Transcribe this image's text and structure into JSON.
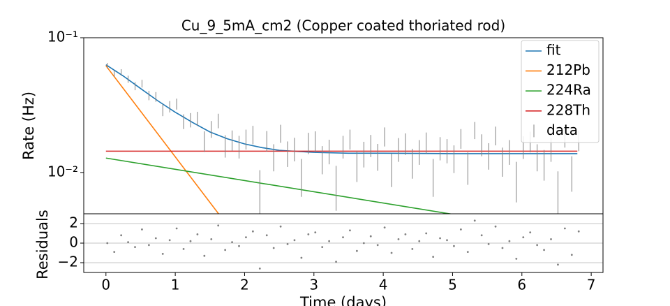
{
  "chart_data": [
    {
      "type": "line",
      "title": "Cu_9_5mA_cm2 (Copper coated thoriated rod)",
      "ylabel": "Rate (Hz)",
      "yscale": "log",
      "xlim": [
        -0.32,
        7.17
      ],
      "ylim": [
        0.00494,
        0.1
      ],
      "yticks": [
        {
          "value": 0.1,
          "label": "10⁻¹"
        },
        {
          "value": 0.01,
          "label": "10⁻²"
        }
      ],
      "legend": "upper right",
      "series": [
        {
          "name": "fit",
          "color": "#1f77b4",
          "style": "line",
          "x": [
            0,
            0.25,
            0.5,
            0.75,
            1,
            1.25,
            1.5,
            1.75,
            2,
            2.25,
            2.5,
            3,
            3.5,
            4,
            5,
            6,
            6.8
          ],
          "values": [
            0.063,
            0.052,
            0.042,
            0.034,
            0.028,
            0.0235,
            0.02,
            0.0178,
            0.0163,
            0.0153,
            0.0146,
            0.0141,
            0.0139,
            0.0139,
            0.0138,
            0.0138,
            0.0138
          ]
        },
        {
          "name": "212Pb",
          "color": "#ff7f0e",
          "style": "line",
          "x": [
            0,
            1.63
          ],
          "values": [
            0.062,
            0.0049
          ]
        },
        {
          "name": "224Ra",
          "color": "#2ca02c",
          "style": "line",
          "x": [
            0,
            5
          ],
          "values": [
            0.0128,
            0.0049
          ]
        },
        {
          "name": "228Th",
          "color": "#d62728",
          "style": "line",
          "x": [
            0,
            6.8
          ],
          "values": [
            0.0144,
            0.0144
          ]
        },
        {
          "name": "data",
          "color": "#808080",
          "style": "errorbar",
          "yerr": 0.003,
          "x": [
            0.02,
            0.12,
            0.22,
            0.32,
            0.42,
            0.52,
            0.62,
            0.72,
            0.82,
            0.92,
            1.02,
            1.12,
            1.22,
            1.32,
            1.42,
            1.52,
            1.62,
            1.72,
            1.82,
            1.92,
            2.02,
            2.12,
            2.22,
            2.32,
            2.42,
            2.52,
            2.62,
            2.72,
            2.82,
            2.92,
            3.02,
            3.12,
            3.22,
            3.32,
            3.42,
            3.52,
            3.62,
            3.72,
            3.82,
            3.92,
            4.02,
            4.12,
            4.22,
            4.32,
            4.42,
            4.52,
            4.62,
            4.72,
            4.82,
            4.92,
            5.02,
            5.12,
            5.22,
            5.32,
            5.42,
            5.52,
            5.62,
            5.72,
            5.82,
            5.92,
            6.02,
            6.12,
            6.22,
            6.32,
            6.42,
            6.52,
            6.62,
            6.72,
            6.82
          ],
          "values": [
            0.062,
            0.0543,
            0.0554,
            0.0493,
            0.0438,
            0.0457,
            0.0374,
            0.0365,
            0.0292,
            0.0309,
            0.0323,
            0.024,
            0.0246,
            0.0252,
            0.0172,
            0.0211,
            0.0243,
            0.0159,
            0.0175,
            0.0157,
            0.0178,
            0.0192,
            0.0074,
            0.0173,
            0.0132,
            0.0196,
            0.014,
            0.0151,
            0.0096,
            0.0167,
            0.0172,
            0.0127,
            0.0145,
            0.0082,
            0.0157,
            0.0178,
            0.0115,
            0.0139,
            0.016,
            0.0133,
            0.0186,
            0.0108,
            0.015,
            0.0165,
            0.012,
            0.0144,
            0.0168,
            0.0096,
            0.0153,
            0.0147,
            0.0129,
            0.018,
            0.0111,
            0.0207,
            0.0162,
            0.0135,
            0.0189,
            0.0123,
            0.0144,
            0.009,
            0.0156,
            0.0171,
            0.0132,
            0.0117,
            0.015,
            0.0072,
            0.0183,
            0.0102,
            0.0174
          ]
        }
      ]
    },
    {
      "type": "scatter",
      "xlabel": "Time (days)",
      "ylabel": "Residuals",
      "color": "#808080",
      "grid": true,
      "xlim": [
        -0.32,
        7.17
      ],
      "ylim": [
        -3,
        3
      ],
      "xticks": [
        0,
        1,
        2,
        3,
        4,
        5,
        6,
        7
      ],
      "yticks": [
        {
          "value": -2,
          "label": "−2"
        },
        0,
        2
      ],
      "x": [
        0.02,
        0.12,
        0.22,
        0.32,
        0.42,
        0.52,
        0.62,
        0.72,
        0.82,
        0.92,
        1.02,
        1.12,
        1.22,
        1.32,
        1.42,
        1.52,
        1.62,
        1.72,
        1.82,
        1.92,
        2.02,
        2.12,
        2.22,
        2.32,
        2.42,
        2.52,
        2.62,
        2.72,
        2.82,
        2.92,
        3.02,
        3.12,
        3.22,
        3.32,
        3.42,
        3.52,
        3.62,
        3.72,
        3.82,
        3.92,
        4.02,
        4.12,
        4.22,
        4.32,
        4.42,
        4.52,
        4.62,
        4.72,
        4.82,
        4.92,
        5.02,
        5.12,
        5.22,
        5.32,
        5.42,
        5.52,
        5.62,
        5.72,
        5.82,
        5.92,
        6.02,
        6.12,
        6.22,
        6.32,
        6.42,
        6.52,
        6.62,
        6.72,
        6.82
      ],
      "values": [
        0.0,
        -0.9,
        0.8,
        0.1,
        -0.4,
        1.4,
        -0.2,
        0.5,
        -1.1,
        0.3,
        1.5,
        -0.6,
        0.2,
        0.9,
        -1.3,
        0.4,
        1.8,
        -0.7,
        0.1,
        -0.3,
        0.6,
        1.2,
        -2.6,
        0.8,
        -0.5,
        1.7,
        -0.1,
        0.3,
        -1.5,
        0.9,
        1.1,
        -0.4,
        0.2,
        -1.9,
        0.6,
        1.3,
        -0.8,
        0.0,
        0.7,
        -0.2,
        1.6,
        -1.0,
        0.4,
        0.9,
        -0.6,
        0.2,
        1.0,
        -1.4,
        0.5,
        0.3,
        -0.3,
        1.4,
        -0.9,
        2.3,
        0.8,
        -0.1,
        1.7,
        -0.5,
        0.2,
        -1.6,
        0.6,
        1.1,
        -0.2,
        -0.7,
        0.4,
        -2.2,
        1.5,
        -1.2,
        1.2
      ]
    }
  ]
}
